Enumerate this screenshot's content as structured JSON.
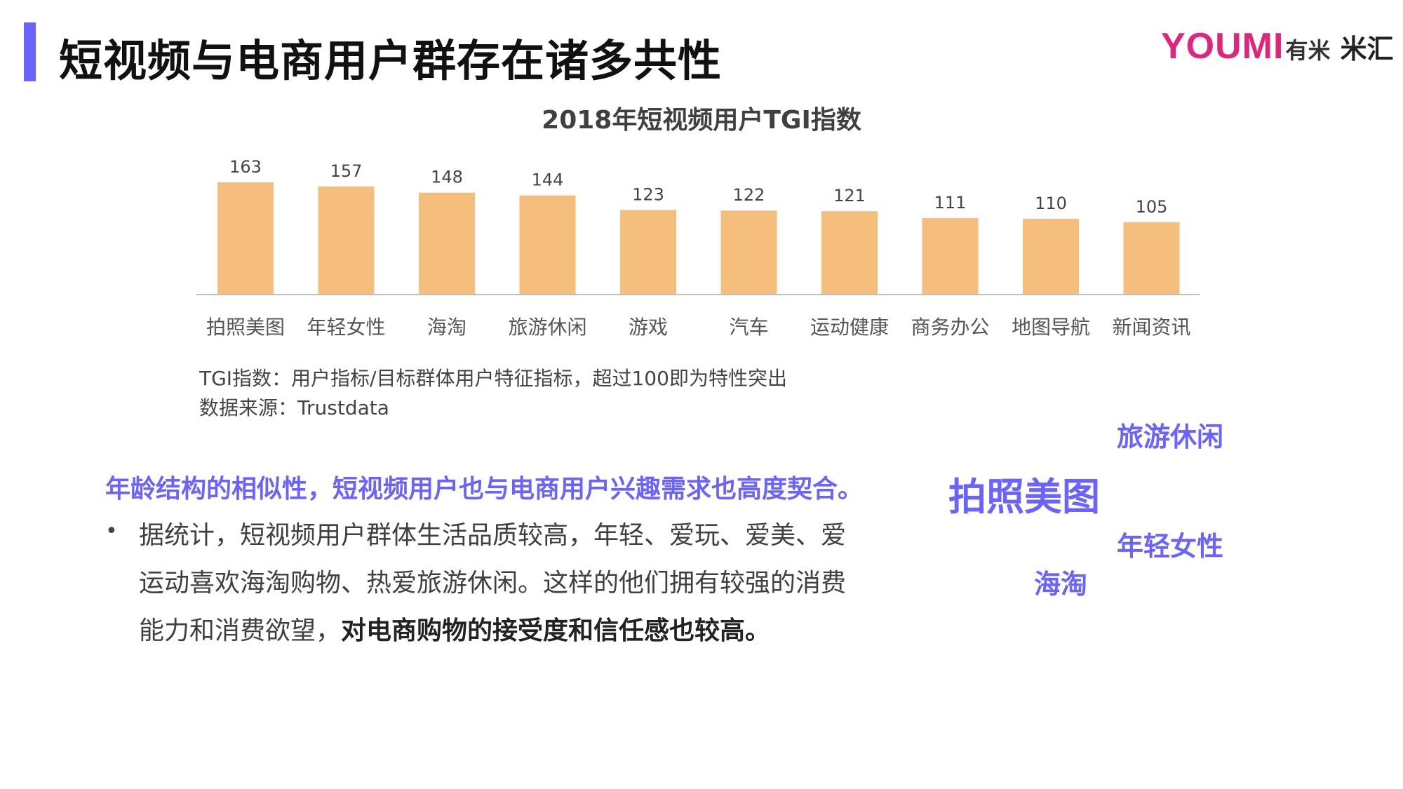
{
  "header": {
    "title": "短视频与电商用户群存在诸多共性",
    "logo_primary": "YOUMI",
    "logo_primary_cn": "有米",
    "logo_secondary": "米汇"
  },
  "chart_data": {
    "type": "bar",
    "title": "2018年短视频用户TGI指数",
    "categories": [
      "拍照美图",
      "年轻女性",
      "海淘",
      "旅游休闲",
      "游戏",
      "汽车",
      "运动健康",
      "商务办公",
      "地图导航",
      "新闻资讯"
    ],
    "values": [
      163,
      157,
      148,
      144,
      123,
      122,
      121,
      111,
      110,
      105
    ],
    "xlabel": "",
    "ylabel": "",
    "ylim": [
      0,
      163
    ],
    "grid": false,
    "legend": "none",
    "bar_color": "#f5be7d"
  },
  "notes": {
    "line1": "TGI指数：用户指标/目标群体用户特征指标，超过100即为特性突出",
    "line2": "数据来源：Trustdata"
  },
  "summary": {
    "headline": "年龄结构的相似性，短视频用户也与电商用户兴趣需求也高度契合。",
    "bullet_symbol": "•",
    "line1": "据统计，短视频用户群体生活品质较高，年轻、爱玩、爱美、爱",
    "line2": "运动喜欢海淘购物、热爱旅游休闲。这样的他们拥有较强的消费",
    "line3_plain": "能力和消费欲望，",
    "line3_bold": "对电商购物的接受度和信任感也较高。"
  },
  "word_cloud": [
    "旅游休闲",
    "拍照美图",
    "年轻女性",
    "海淘"
  ],
  "colors": {
    "accent": "#6b63ff",
    "bar": "#f5be7d",
    "text": "#404040"
  }
}
